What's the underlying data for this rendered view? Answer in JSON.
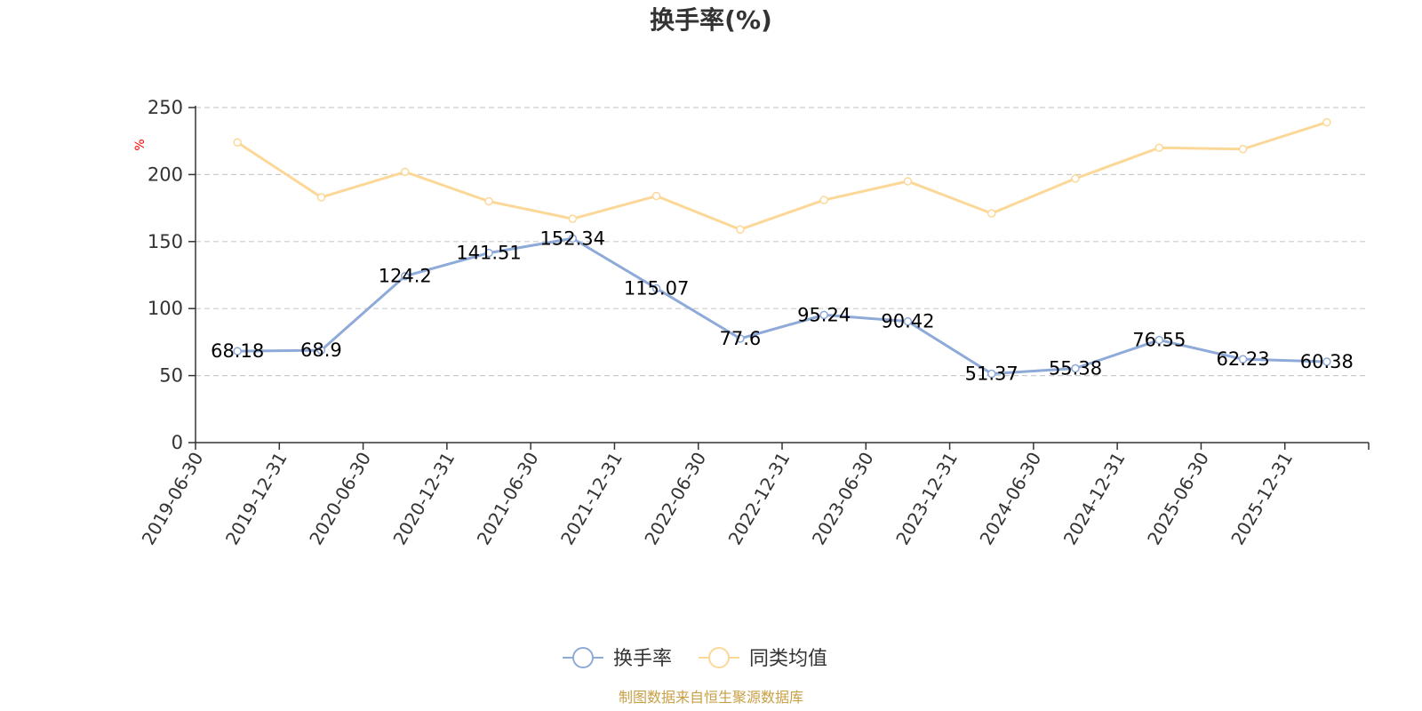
{
  "chart_data": {
    "type": "line",
    "title": "换手率(%)",
    "ylabel": "%",
    "ylim": [
      0,
      250
    ],
    "yticks": [
      0,
      50,
      100,
      150,
      200,
      250
    ],
    "grid": true,
    "legend_placement": "bottom-center",
    "categories": [
      "2019-06-30",
      "2019-12-31",
      "2020-06-30",
      "2020-12-31",
      "2021-06-30",
      "2021-12-31",
      "2022-06-30",
      "2022-12-31",
      "2023-06-30",
      "2023-12-31",
      "2024-06-30",
      "2024-12-31",
      "2025-06-30",
      "2025-12-31"
    ],
    "series": [
      {
        "name": "换手率",
        "color": "#8eaad8",
        "show_labels": true,
        "values": [
          68.18,
          68.9,
          124.2,
          141.51,
          152.34,
          115.07,
          77.6,
          95.24,
          90.42,
          51.37,
          55.38,
          76.55,
          62.23,
          60.38
        ]
      },
      {
        "name": "同类均值",
        "color": "#fcd898",
        "show_labels": false,
        "values": [
          224,
          183,
          202,
          180,
          167,
          184,
          159,
          181,
          195,
          171,
          197,
          220,
          219,
          239
        ]
      }
    ],
    "source": "制图数据来自恒生聚源数据库"
  }
}
